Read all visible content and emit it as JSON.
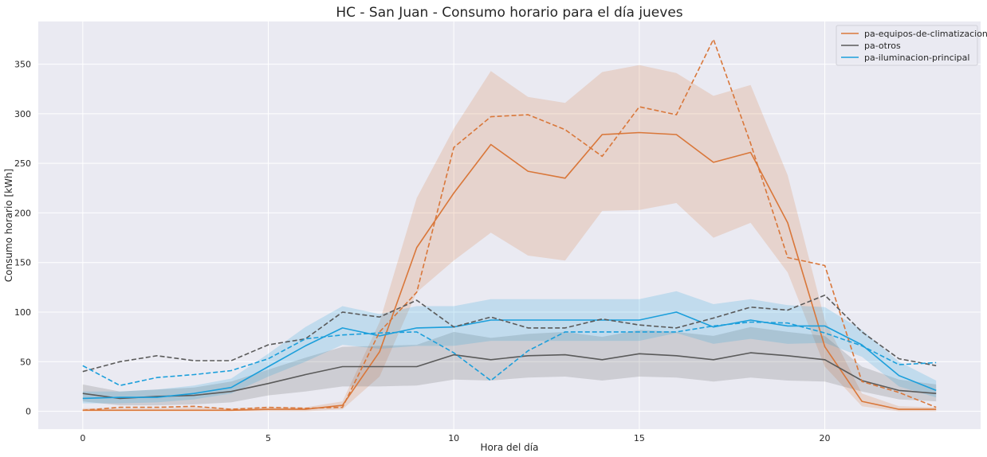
{
  "chart_data": {
    "type": "line",
    "title": "HC - San Juan - Consumo horario para el día jueves",
    "xlabel": "Hora del día",
    "ylabel": "Consumo horario [kWh]",
    "xlim": [
      -1.2,
      24.2
    ],
    "ylim": [
      -18,
      393
    ],
    "xticks": [
      0,
      5,
      10,
      15,
      20
    ],
    "yticks": [
      0,
      50,
      100,
      150,
      200,
      250,
      300,
      350
    ],
    "grid": true,
    "legend_position": "top-right",
    "x": [
      0,
      1,
      2,
      3,
      4,
      5,
      6,
      7,
      8,
      9,
      10,
      11,
      12,
      13,
      14,
      15,
      16,
      17,
      18,
      19,
      20,
      21,
      22,
      23
    ],
    "series": [
      {
        "name": "pa-equipos-de-climatizacion",
        "color": "#d9773a",
        "mean": [
          1,
          1,
          1,
          1,
          1,
          2,
          2,
          6,
          60,
          165,
          220,
          269,
          242,
          235,
          279,
          281,
          279,
          251,
          261,
          190,
          65,
          10,
          2,
          2
        ],
        "lower": [
          0,
          0,
          0,
          0,
          0,
          0,
          0,
          2,
          35,
          120,
          152,
          180,
          157,
          152,
          202,
          203,
          210,
          175,
          190,
          140,
          45,
          5,
          0,
          0
        ],
        "upper": [
          3,
          3,
          3,
          4,
          3,
          4,
          4,
          10,
          90,
          215,
          285,
          343,
          317,
          311,
          342,
          349,
          341,
          318,
          329,
          238,
          92,
          18,
          5,
          4
        ],
        "reference": [
          1,
          4,
          4,
          5,
          2,
          4,
          3,
          4,
          80,
          120,
          266,
          297,
          299,
          284,
          257,
          307,
          299,
          375,
          270,
          155,
          147,
          30,
          19,
          4
        ]
      },
      {
        "name": "pa-otros",
        "color": "#5a5a5a",
        "mean": [
          18,
          13,
          15,
          16,
          20,
          28,
          37,
          45,
          45,
          45,
          57,
          52,
          56,
          57,
          52,
          58,
          56,
          52,
          59,
          56,
          52,
          31,
          21,
          18
        ],
        "lower": [
          10,
          6,
          6,
          7,
          9,
          16,
          20,
          25,
          25,
          26,
          32,
          31,
          34,
          35,
          31,
          35,
          34,
          30,
          34,
          31,
          30,
          20,
          12,
          10
        ],
        "upper": [
          27,
          20,
          22,
          24,
          30,
          42,
          54,
          65,
          66,
          67,
          80,
          74,
          78,
          80,
          75,
          82,
          80,
          76,
          85,
          80,
          76,
          45,
          32,
          27
        ],
        "reference": [
          40,
          50,
          56,
          51,
          51,
          67,
          73,
          100,
          95,
          112,
          85,
          95,
          84,
          84,
          93,
          87,
          84,
          94,
          105,
          102,
          117,
          80,
          53,
          46
        ]
      },
      {
        "name": "pa-iluminacion-principal",
        "color": "#1c9fdb",
        "mean": [
          13,
          14,
          14,
          18,
          24,
          45,
          66,
          84,
          76,
          84,
          85,
          92,
          92,
          92,
          92,
          92,
          100,
          85,
          92,
          86,
          86,
          67,
          36,
          21
        ],
        "lower": [
          8,
          8,
          9,
          12,
          18,
          35,
          50,
          67,
          63,
          66,
          66,
          71,
          71,
          71,
          71,
          71,
          79,
          68,
          73,
          68,
          69,
          55,
          25,
          14
        ],
        "upper": [
          20,
          20,
          22,
          26,
          33,
          58,
          85,
          106,
          98,
          106,
          106,
          113,
          113,
          113,
          113,
          113,
          121,
          108,
          113,
          107,
          105,
          82,
          50,
          31
        ],
        "reference": [
          46,
          26,
          34,
          37,
          41,
          53,
          73,
          77,
          79,
          80,
          59,
          31,
          61,
          80,
          80,
          80,
          80,
          86,
          90,
          89,
          79,
          66,
          47,
          49
        ]
      }
    ]
  }
}
